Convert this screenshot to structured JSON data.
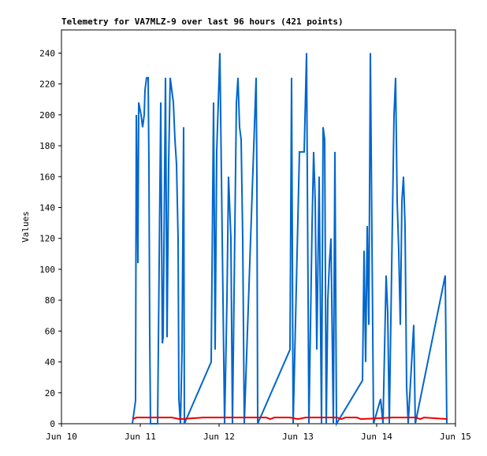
{
  "chart_data": {
    "type": "line",
    "title": "Telemetry for VA7MLZ-9 over last 96 hours (421 points)",
    "y_label": "Values",
    "xlim": [
      0,
      5
    ],
    "xticks": [
      {
        "value": 0,
        "label": "Jun 10"
      },
      {
        "value": 1,
        "label": "Jun 11"
      },
      {
        "value": 2,
        "label": "Jun 12"
      },
      {
        "value": 3,
        "label": "Jun 13"
      },
      {
        "value": 4,
        "label": "Jun 14"
      },
      {
        "value": 5,
        "label": "Jun 15"
      }
    ],
    "ylim": [
      0,
      255
    ],
    "yticks": [
      0,
      20,
      40,
      60,
      80,
      100,
      120,
      140,
      160,
      180,
      200,
      220,
      240
    ],
    "grid": false,
    "series": [
      {
        "color": "#0066cc",
        "x": [
          0.9,
          0.94,
          0.95,
          0.97,
          0.98,
          1.01,
          1.03,
          1.05,
          1.06,
          1.08,
          1.1,
          1.11,
          1.12,
          1.13,
          1.22,
          1.23,
          1.25,
          1.26,
          1.28,
          1.29,
          1.31,
          1.32,
          1.34,
          1.36,
          1.38,
          1.4,
          1.42,
          1.44,
          1.46,
          1.48,
          1.49,
          1.51,
          1.53,
          1.55,
          1.56,
          1.9,
          1.92,
          1.93,
          1.95,
          1.97,
          1.99,
          2.01,
          2.04,
          2.07,
          2.1,
          2.12,
          2.15,
          2.17,
          2.22,
          2.24,
          2.26,
          2.28,
          2.3,
          2.32,
          2.47,
          2.48,
          2.49,
          2.9,
          2.92,
          2.94,
          3.02,
          3.08,
          3.11,
          3.14,
          3.18,
          3.2,
          3.22,
          3.24,
          3.27,
          3.3,
          3.32,
          3.34,
          3.36,
          3.38,
          3.4,
          3.42,
          3.45,
          3.47,
          3.49,
          3.82,
          3.84,
          3.86,
          3.88,
          3.9,
          3.92,
          3.94,
          3.96,
          4.05,
          4.08,
          4.12,
          4.14,
          4.16,
          4.22,
          4.24,
          4.26,
          4.28,
          4.3,
          4.32,
          4.34,
          4.36,
          4.38,
          4.4,
          4.47,
          4.49,
          4.87,
          4.89
        ],
        "values": [
          0,
          15,
          200,
          104,
          208,
          200,
          192,
          200,
          216,
          224,
          224,
          168,
          56,
          0,
          0,
          52,
          156,
          208,
          52,
          56,
          168,
          224,
          56,
          168,
          224,
          216,
          208,
          184,
          168,
          120,
          16,
          0,
          48,
          192,
          0,
          40,
          152,
          208,
          48,
          176,
          208,
          240,
          120,
          0,
          80,
          160,
          120,
          0,
          208,
          224,
          192,
          184,
          120,
          0,
          224,
          160,
          0,
          48,
          224,
          0,
          176,
          176,
          240,
          0,
          128,
          176,
          144,
          48,
          160,
          0,
          192,
          184,
          0,
          80,
          104,
          120,
          0,
          176,
          0,
          28,
          112,
          40,
          128,
          64,
          240,
          120,
          0,
          16,
          0,
          96,
          72,
          0,
          200,
          224,
          144,
          112,
          64,
          144,
          160,
          128,
          24,
          0,
          64,
          0,
          96,
          0
        ]
      },
      {
        "color": "#ee0000",
        "x": [
          0.9,
          0.95,
          1.4,
          1.5,
          1.8,
          2.6,
          2.65,
          2.7,
          2.9,
          3.0,
          3.1,
          3.5,
          3.55,
          3.6,
          3.75,
          3.8,
          4.2,
          4.5,
          4.55,
          4.6,
          4.9
        ],
        "values": [
          3,
          4,
          4,
          3,
          4,
          4,
          3,
          4,
          4,
          3,
          4,
          4,
          3,
          4,
          4,
          3,
          4,
          4,
          3,
          4,
          3
        ]
      }
    ]
  }
}
